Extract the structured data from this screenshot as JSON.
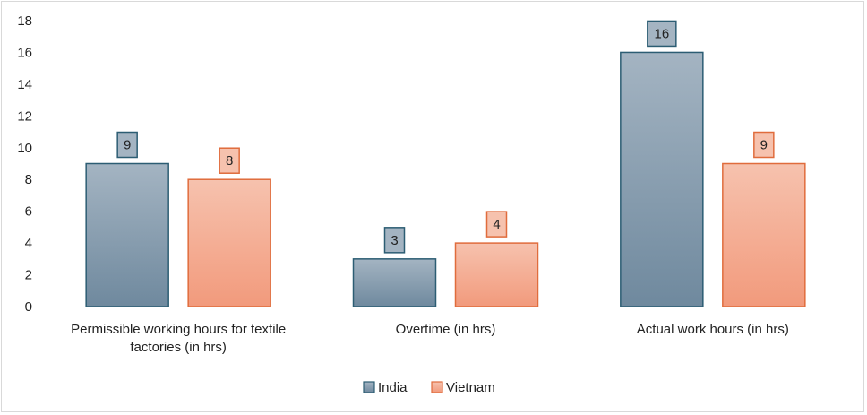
{
  "chart_data": {
    "type": "bar",
    "title": "",
    "xlabel": "",
    "ylabel": "",
    "ylim": [
      0,
      18
    ],
    "yticks": [
      0,
      2,
      4,
      6,
      8,
      10,
      12,
      14,
      16,
      18
    ],
    "grid": false,
    "legend_position": "bottom",
    "categories": [
      "Permissible working hours for textile factories (in hrs)",
      "Overtime (in hrs)",
      "Actual work hours  (in hrs)"
    ],
    "category_lines": [
      [
        "Permissible working hours for textile",
        "factories (in hrs)"
      ],
      [
        "Overtime (in hrs)"
      ],
      [
        "Actual work hours  (in hrs)"
      ]
    ],
    "series": [
      {
        "name": "India",
        "values": [
          9,
          3,
          16
        ],
        "color_top": "#a4b4c2",
        "color_bottom": "#6f899e",
        "stroke": "#2c5d73"
      },
      {
        "name": "Vietnam",
        "values": [
          8,
          4,
          9
        ],
        "color_top": "#f6c2ae",
        "color_bottom": "#f29a7c",
        "stroke": "#e06c3c"
      }
    ]
  }
}
